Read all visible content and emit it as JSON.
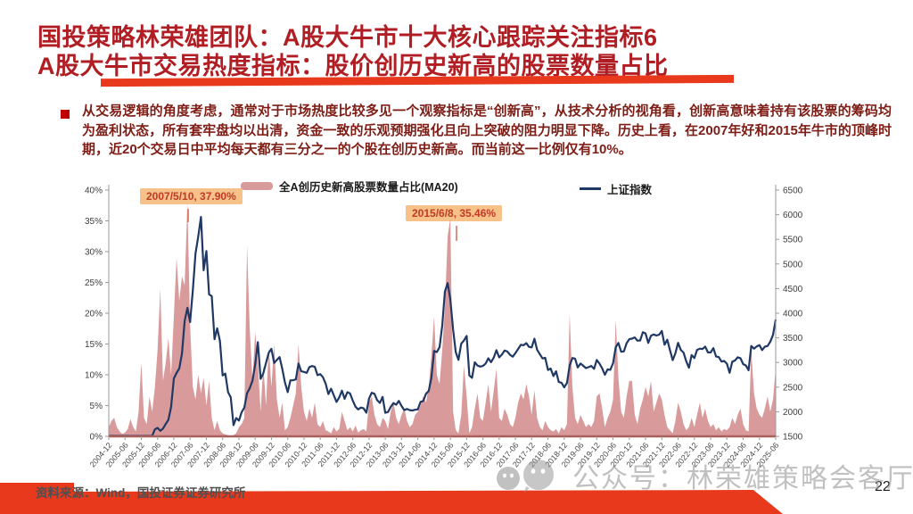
{
  "slide": {
    "title_line1": "国投策略林荣雄团队：A股大牛市十大核心跟踪关注指标6",
    "title_line2": "A股大牛市交易热度指标：股价创历史新高的股票数量占比",
    "body": "从交易逻辑的角度考虑，通常对于市场热度比较多见一个观察指标是“创新高”，从技术分析的视角看，创新高意味着持有该股票的筹码均为盈利状态，所有套牢盘均以出清，资金一致的乐观预期强化且向上突破的阻力明显下降。历史上看，在2007年好和2015年牛市的顶峰时期，近20个交易日中平均每天都有三分之一的个股在创历史新高。而当前这一比例仅有10%。",
    "source_note": "资料来源：Wind，国投证券证券研究所",
    "watermark_text": "公众号：林荣雄策略会客厅",
    "page_number": "22",
    "colors": {
      "title_red": "#B01E24",
      "accent_red": "#E8391D",
      "body_text": "#7E1D15",
      "area_pink": "#D99A9B",
      "line_navy": "#1F3864",
      "annotation_bg": "#F7C18A",
      "annotation_text": "#C03A26"
    }
  },
  "chart_data": {
    "type": "area",
    "title": "",
    "legend_position": "top",
    "grid": false,
    "legend": [
      {
        "label": "全A创历史新高股票数量占比(MA20)",
        "type": "area",
        "color": "#D99A9B",
        "axis": "left"
      },
      {
        "label": "上证指数",
        "type": "line",
        "color": "#1F3864",
        "axis": "right"
      }
    ],
    "annotations": [
      {
        "text": "2007/5/10, 37.90%"
      },
      {
        "text": "2015/6/8, 35.46%"
      }
    ],
    "x_start": "2004-12",
    "x_interval": "monthly",
    "x_tick_step_months": 6,
    "x_tick_labels": [
      "2004-12",
      "2005-06",
      "2005-12",
      "2006-06",
      "2006-12",
      "2007-06",
      "2007-12",
      "2008-06",
      "2008-12",
      "2009-06",
      "2009-12",
      "2010-06",
      "2010-12",
      "2011-06",
      "2011-12",
      "2012-06",
      "2012-12",
      "2013-06",
      "2013-12",
      "2014-06",
      "2014-12",
      "2015-06",
      "2015-12",
      "2016-06",
      "2016-12",
      "2017-06",
      "2017-12",
      "2018-06",
      "2018-12",
      "2019-06",
      "2019-12",
      "2020-06",
      "2020-12",
      "2021-06",
      "2021-12",
      "2022-06",
      "2022-12",
      "2023-06",
      "2023-12",
      "2024-06",
      "2024-12",
      "2025-06"
    ],
    "y_left": {
      "min": 0,
      "max": 40,
      "tick_labels": [
        "0%",
        "5%",
        "10%",
        "15%",
        "20%",
        "25%",
        "30%",
        "35%",
        "40%"
      ]
    },
    "y_right": {
      "min": 1500,
      "max": 6500,
      "tick_labels": [
        "1500",
        "2000",
        "2500",
        "3000",
        "3500",
        "4000",
        "4500",
        "5000",
        "5500",
        "6000",
        "6500"
      ]
    },
    "series": [
      {
        "name": "全A创历史新高股票数量占比(MA20)",
        "axis": "left",
        "unit": "%",
        "values": [
          1.5,
          2.5,
          3.0,
          1.5,
          0.8,
          0.4,
          0.6,
          1.2,
          2.8,
          1.5,
          0.8,
          4.0,
          12.0,
          3.0,
          2.0,
          6.5,
          4.0,
          8.0,
          14.0,
          24.0,
          9.0,
          12.0,
          16.0,
          10.0,
          19.5,
          29.0,
          22.0,
          26.0,
          24.5,
          37.9,
          18.0,
          8.0,
          6.0,
          10.0,
          7.0,
          9.5,
          5.0,
          9.0,
          3.0,
          1.0,
          2.5,
          1.0,
          0.5,
          0.3,
          0.2,
          0.1,
          0.2,
          0.5,
          1.5,
          2.0,
          3.0,
          31.0,
          17.5,
          9.0,
          17.0,
          12.0,
          4.0,
          11.5,
          5.0,
          14.5,
          8.0,
          15.0,
          6.0,
          3.0,
          5.5,
          1.0,
          1.5,
          3.0,
          5.0,
          7.0,
          15.0,
          8.0,
          4.0,
          2.5,
          4.5,
          3.0,
          5.5,
          2.0,
          1.5,
          2.5,
          1.0,
          0.8,
          0.5,
          1.5,
          0.8,
          1.2,
          4.0,
          2.5,
          1.0,
          1.5,
          0.8,
          1.8,
          0.6,
          1.0,
          1.2,
          0.8,
          5.5,
          6.5,
          3.5,
          2.0,
          1.5,
          3.0,
          2.5,
          1.2,
          4.0,
          5.5,
          3.0,
          2.0,
          3.5,
          4.5,
          2.5,
          1.5,
          2.0,
          3.5,
          4.0,
          5.0,
          6.5,
          5.5,
          8.0,
          13.0,
          19.5,
          10.0,
          8.5,
          14.0,
          21.0,
          32.5,
          35.46,
          4.0,
          1.0,
          0.5,
          3.5,
          11.5,
          6.5,
          0.5,
          1.5,
          4.5,
          7.0,
          3.0,
          2.5,
          5.5,
          8.5,
          4.0,
          7.5,
          11.0,
          3.0,
          2.5,
          4.5,
          3.5,
          2.0,
          1.5,
          3.0,
          5.5,
          7.0,
          6.0,
          8.5,
          6.5,
          3.5,
          7.5,
          3.0,
          1.5,
          1.0,
          2.5,
          1.5,
          1.0,
          0.8,
          1.2,
          0.5,
          1.5,
          1.0,
          2.0,
          20.0,
          8.0,
          3.0,
          2.0,
          3.5,
          2.5,
          1.5,
          2.0,
          1.5,
          2.5,
          6.5,
          7.0,
          4.5,
          1.5,
          3.0,
          4.0,
          6.0,
          19.0,
          9.5,
          4.0,
          3.0,
          6.5,
          9.0,
          9.0,
          3.5,
          2.0,
          4.5,
          6.0,
          8.0,
          6.5,
          9.0,
          4.0,
          5.5,
          7.0,
          6.0,
          3.5,
          1.5,
          1.0,
          0.5,
          2.5,
          5.5,
          4.0,
          2.0,
          1.0,
          1.5,
          3.0,
          1.5,
          3.5,
          5.5,
          3.0,
          4.5,
          2.5,
          1.5,
          2.0,
          1.0,
          1.5,
          0.8,
          1.2,
          1.0,
          1.5,
          3.0,
          2.0,
          3.5,
          4.5,
          2.0,
          1.0,
          0.8,
          14.0,
          7.0,
          4.5,
          3.5,
          3.0,
          4.5,
          6.5,
          4.0,
          6.0,
          11.0
        ]
      },
      {
        "name": "上证指数",
        "axis": "right",
        "unit": "points",
        "values": [
          1266,
          1191,
          1306,
          1181,
          1159,
          1060,
          1081,
          1083,
          1162,
          1155,
          1092,
          1099,
          1161,
          1258,
          1299,
          1298,
          1440,
          1641,
          1672,
          1612,
          1658,
          1752,
          1837,
          2099,
          2675,
          2786,
          2881,
          3183,
          3841,
          4109,
          3820,
          4471,
          5218,
          5552,
          5955,
          4872,
          5262,
          4383,
          4348,
          3472,
          3693,
          3433,
          2736,
          2775,
          2397,
          2294,
          1729,
          1871,
          1821,
          1991,
          2083,
          2373,
          2478,
          2632,
          2959,
          3412,
          2668,
          2779,
          2995,
          3195,
          3277,
          2989,
          3052,
          3109,
          2870,
          2592,
          2398,
          2638,
          2639,
          2656,
          2979,
          2820,
          2808,
          2790,
          2905,
          2928,
          2911,
          2743,
          2762,
          2701,
          2567,
          2359,
          2468,
          2333,
          2199,
          2292,
          2428,
          2262,
          2396,
          2372,
          2225,
          2103,
          2047,
          2086,
          2068,
          1980,
          2269,
          2385,
          2365,
          2236,
          2177,
          2301,
          1979,
          1994,
          2098,
          2175,
          2141,
          2220,
          2116,
          2033,
          2056,
          2033,
          2026,
          2039,
          2048,
          2201,
          2217,
          2364,
          2420,
          2683,
          3235,
          3210,
          3310,
          3748,
          4442,
          4612,
          4277,
          3664,
          3206,
          3053,
          3383,
          3445,
          3539,
          2738,
          2688,
          3004,
          2938,
          2917,
          2930,
          2979,
          3085,
          3005,
          3100,
          3250,
          3104,
          3159,
          3242,
          3223,
          3155,
          3117,
          3192,
          3273,
          3361,
          3349,
          3393,
          3317,
          3307,
          3481,
          3259,
          3169,
          3082,
          3095,
          2847,
          2876,
          2725,
          2821,
          2603,
          2588,
          2494,
          2585,
          2941,
          3091,
          3078,
          2899,
          2979,
          2933,
          2886,
          2905,
          2929,
          2872,
          3050,
          2977,
          2880,
          2750,
          2860,
          2852,
          2985,
          3310,
          3396,
          3218,
          3225,
          3392,
          3473,
          3483,
          3509,
          3442,
          3447,
          3615,
          3591,
          3397,
          3544,
          3568,
          3547,
          3564,
          3640,
          3361,
          3462,
          3252,
          3047,
          3186,
          3399,
          3253,
          3202,
          3024,
          2893,
          3151,
          3089,
          3256,
          3280,
          3273,
          3323,
          3205,
          3202,
          3291,
          3120,
          3110,
          3019,
          3030,
          2975,
          2789,
          3015,
          3041,
          3105,
          3087,
          2967,
          2938,
          2842,
          3336,
          3280,
          3326,
          3352,
          3251,
          3321,
          3336,
          3420,
          3560,
          3870
        ]
      }
    ]
  }
}
